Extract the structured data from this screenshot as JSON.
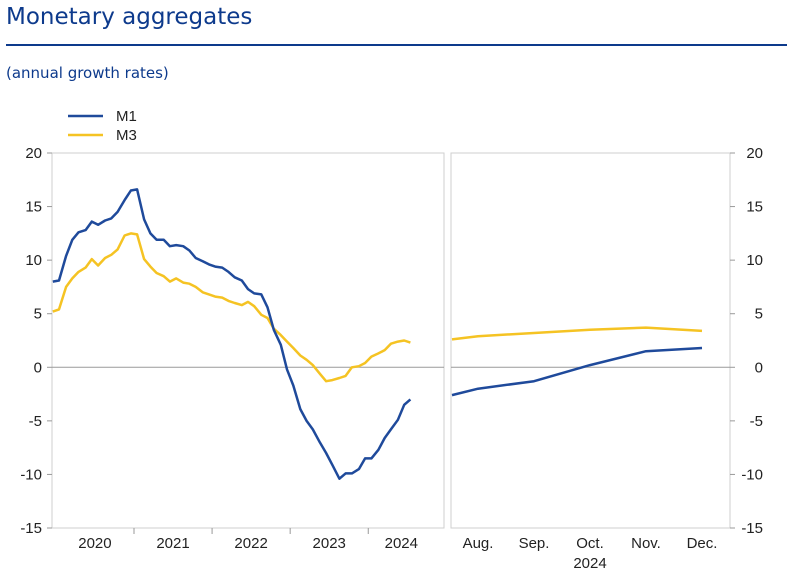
{
  "header": {
    "title": "Monetary aggregates",
    "subtitle": "(annual growth rates)"
  },
  "chart_data": [
    {
      "type": "line",
      "title": "",
      "xlabel": "",
      "ylabel": "",
      "ylim": [
        -15,
        20
      ],
      "yticks": [
        20,
        15,
        10,
        5,
        0,
        -5,
        -10,
        -15
      ],
      "x_tick_labels": [
        "2020",
        "2021",
        "2022",
        "2023",
        "2024"
      ],
      "x_tick_positions": [
        2020.5,
        2021.5,
        2022.5,
        2023.5,
        2024.5
      ],
      "xlim": [
        2019.95,
        2024.97
      ],
      "legend": "top-left",
      "grid": false,
      "zero_line": true,
      "series": [
        {
          "name": "M1",
          "color": "#1f4a9b",
          "x": [
            2019.96,
            2020.04,
            2020.13,
            2020.21,
            2020.29,
            2020.38,
            2020.46,
            2020.54,
            2020.63,
            2020.71,
            2020.79,
            2020.88,
            2020.96,
            2021.04,
            2021.13,
            2021.21,
            2021.29,
            2021.38,
            2021.46,
            2021.54,
            2021.63,
            2021.71,
            2021.79,
            2021.88,
            2021.96,
            2022.04,
            2022.13,
            2022.21,
            2022.29,
            2022.38,
            2022.46,
            2022.54,
            2022.63,
            2022.71,
            2022.79,
            2022.88,
            2022.96,
            2023.04,
            2023.13,
            2023.21,
            2023.29,
            2023.38,
            2023.46,
            2023.54,
            2023.63,
            2023.71,
            2023.79,
            2023.88,
            2023.96,
            2024.04,
            2024.13,
            2024.21,
            2024.29,
            2024.38,
            2024.46,
            2024.54
          ],
          "values": [
            8.0,
            8.1,
            10.4,
            11.9,
            12.6,
            12.8,
            13.6,
            13.3,
            13.7,
            13.9,
            14.5,
            15.6,
            16.5,
            16.6,
            13.8,
            12.5,
            11.9,
            11.9,
            11.3,
            11.4,
            11.3,
            10.9,
            10.2,
            9.9,
            9.6,
            9.4,
            9.3,
            8.9,
            8.4,
            8.1,
            7.3,
            6.9,
            6.8,
            5.6,
            3.5,
            2.1,
            -0.2,
            -1.7,
            -3.9,
            -5.0,
            -5.8,
            -7.0,
            -8.0,
            -9.1,
            -10.4,
            -9.9,
            -9.9,
            -9.5,
            -8.5,
            -8.5,
            -7.7,
            -6.6,
            -5.8,
            -4.9,
            -3.5,
            -3.0
          ]
        },
        {
          "name": "M3",
          "color": "#f5c323",
          "x": [
            2019.96,
            2020.04,
            2020.13,
            2020.21,
            2020.29,
            2020.38,
            2020.46,
            2020.54,
            2020.63,
            2020.71,
            2020.79,
            2020.88,
            2020.96,
            2021.04,
            2021.13,
            2021.21,
            2021.29,
            2021.38,
            2021.46,
            2021.54,
            2021.63,
            2021.71,
            2021.79,
            2021.88,
            2021.96,
            2022.04,
            2022.13,
            2022.21,
            2022.29,
            2022.38,
            2022.46,
            2022.54,
            2022.63,
            2022.71,
            2022.79,
            2022.88,
            2022.96,
            2023.04,
            2023.13,
            2023.21,
            2023.29,
            2023.38,
            2023.46,
            2023.54,
            2023.63,
            2023.71,
            2023.79,
            2023.88,
            2023.96,
            2024.04,
            2024.13,
            2024.21,
            2024.29,
            2024.38,
            2024.46,
            2024.54
          ],
          "values": [
            5.2,
            5.4,
            7.5,
            8.3,
            8.9,
            9.3,
            10.1,
            9.5,
            10.2,
            10.5,
            11.0,
            12.3,
            12.5,
            12.4,
            10.1,
            9.4,
            8.8,
            8.5,
            8.0,
            8.3,
            7.9,
            7.8,
            7.5,
            7.0,
            6.8,
            6.6,
            6.5,
            6.2,
            6.0,
            5.8,
            6.1,
            5.7,
            4.9,
            4.6,
            3.6,
            3.0,
            2.4,
            1.8,
            1.1,
            0.7,
            0.2,
            -0.6,
            -1.3,
            -1.2,
            -1.0,
            -0.8,
            0.0,
            0.1,
            0.4,
            1.0,
            1.3,
            1.6,
            2.2,
            2.4,
            2.5,
            2.3
          ]
        }
      ]
    },
    {
      "type": "line",
      "title": "",
      "xlabel": "",
      "ylabel": "",
      "ylim": [
        -15,
        20
      ],
      "yticks": [
        20,
        15,
        10,
        5,
        0,
        -5,
        -10,
        -15
      ],
      "x_tick_labels": [
        "Aug.",
        "Sep.",
        "Oct.",
        "Nov.",
        "Dec."
      ],
      "x_sublabel": "2024",
      "x": [
        "2024-07",
        "2024-08",
        "2024-09",
        "2024-10",
        "2024-11",
        "2024-12"
      ],
      "legend": "none",
      "grid": false,
      "zero_line": true,
      "series": [
        {
          "name": "M1",
          "color": "#1f4a9b",
          "values": [
            -2.6,
            -2.0,
            -1.3,
            0.2,
            1.5,
            1.8
          ]
        },
        {
          "name": "M3",
          "color": "#f5c323",
          "values": [
            2.6,
            2.9,
            3.2,
            3.5,
            3.7,
            3.4
          ]
        }
      ]
    }
  ]
}
